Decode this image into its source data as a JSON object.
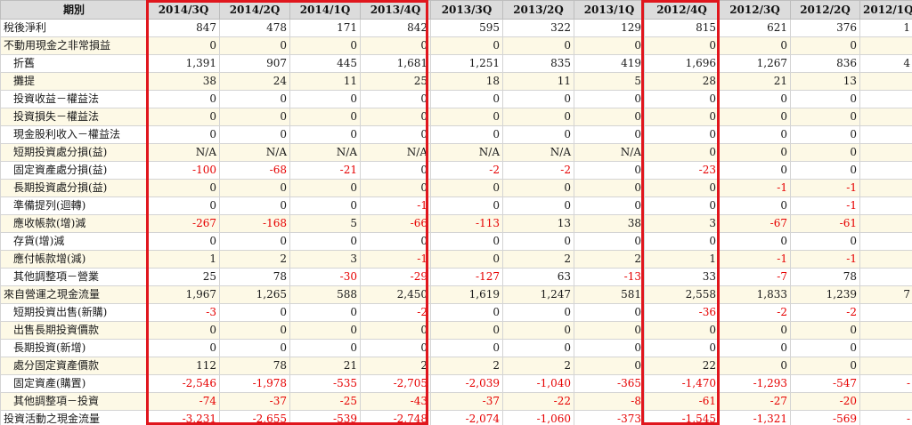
{
  "table": {
    "header_label": "期別",
    "periods": [
      "2014/3Q",
      "2014/2Q",
      "2014/1Q",
      "2013/4Q",
      "2013/3Q",
      "2013/2Q",
      "2013/1Q",
      "2012/4Q",
      "2012/3Q",
      "2012/2Q",
      "2012/1Q"
    ],
    "rows": [
      {
        "label": "稅後淨利",
        "indent": false,
        "yellow": false,
        "values": [
          "847",
          "478",
          "171",
          "842",
          "595",
          "322",
          "129",
          "815",
          "621",
          "376",
          "1"
        ]
      },
      {
        "label": "不動用現金之非常損益",
        "indent": false,
        "yellow": true,
        "values": [
          "0",
          "0",
          "0",
          "0",
          "0",
          "0",
          "0",
          "0",
          "0",
          "0",
          ""
        ]
      },
      {
        "label": "折舊",
        "indent": true,
        "yellow": false,
        "values": [
          "1,391",
          "907",
          "445",
          "1,681",
          "1,251",
          "835",
          "419",
          "1,696",
          "1,267",
          "836",
          "4"
        ]
      },
      {
        "label": "攤提",
        "indent": true,
        "yellow": true,
        "values": [
          "38",
          "24",
          "11",
          "25",
          "18",
          "11",
          "5",
          "28",
          "21",
          "13",
          ""
        ]
      },
      {
        "label": "投資收益－權益法",
        "indent": true,
        "yellow": false,
        "values": [
          "0",
          "0",
          "0",
          "0",
          "0",
          "0",
          "0",
          "0",
          "0",
          "0",
          ""
        ]
      },
      {
        "label": "投資損失－權益法",
        "indent": true,
        "yellow": true,
        "values": [
          "0",
          "0",
          "0",
          "0",
          "0",
          "0",
          "0",
          "0",
          "0",
          "0",
          ""
        ]
      },
      {
        "label": "現金股利收入－權益法",
        "indent": true,
        "yellow": false,
        "values": [
          "0",
          "0",
          "0",
          "0",
          "0",
          "0",
          "0",
          "0",
          "0",
          "0",
          ""
        ]
      },
      {
        "label": "短期投資處分損(益)",
        "indent": true,
        "yellow": true,
        "values": [
          "N/A",
          "N/A",
          "N/A",
          "N/A",
          "N/A",
          "N/A",
          "N/A",
          "0",
          "0",
          "0",
          ""
        ]
      },
      {
        "label": "固定資產處分損(益)",
        "indent": true,
        "yellow": false,
        "values": [
          "-100",
          "-68",
          "-21",
          "0",
          "-2",
          "-2",
          "0",
          "-23",
          "0",
          "0",
          ""
        ]
      },
      {
        "label": "長期投資處分損(益)",
        "indent": true,
        "yellow": true,
        "values": [
          "0",
          "0",
          "0",
          "0",
          "0",
          "0",
          "0",
          "0",
          "-1",
          "-1",
          ""
        ]
      },
      {
        "label": "準備提列(迴轉)",
        "indent": true,
        "yellow": false,
        "values": [
          "0",
          "0",
          "0",
          "-1",
          "0",
          "0",
          "0",
          "0",
          "0",
          "-1",
          ""
        ]
      },
      {
        "label": "應收帳款(增)減",
        "indent": true,
        "yellow": true,
        "values": [
          "-267",
          "-168",
          "5",
          "-66",
          "-113",
          "13",
          "38",
          "3",
          "-67",
          "-61",
          ""
        ]
      },
      {
        "label": "存貨(增)減",
        "indent": true,
        "yellow": false,
        "values": [
          "0",
          "0",
          "0",
          "0",
          "0",
          "0",
          "0",
          "0",
          "0",
          "0",
          ""
        ]
      },
      {
        "label": "應付帳款增(減)",
        "indent": true,
        "yellow": true,
        "values": [
          "1",
          "2",
          "3",
          "-1",
          "0",
          "2",
          "2",
          "1",
          "-1",
          "-1",
          ""
        ]
      },
      {
        "label": "其他調整項－營業",
        "indent": true,
        "yellow": false,
        "values": [
          "25",
          "78",
          "-30",
          "-29",
          "-127",
          "63",
          "-13",
          "33",
          "-7",
          "78",
          ""
        ]
      },
      {
        "label": "來自營運之現金流量",
        "indent": false,
        "yellow": true,
        "values": [
          "1,967",
          "1,265",
          "588",
          "2,450",
          "1,619",
          "1,247",
          "581",
          "2,558",
          "1,833",
          "1,239",
          "7"
        ]
      },
      {
        "label": "短期投資出售(新購)",
        "indent": true,
        "yellow": false,
        "values": [
          "-3",
          "0",
          "0",
          "-2",
          "0",
          "0",
          "0",
          "-36",
          "-2",
          "-2",
          ""
        ]
      },
      {
        "label": "出售長期投資價款",
        "indent": true,
        "yellow": true,
        "values": [
          "0",
          "0",
          "0",
          "0",
          "0",
          "0",
          "0",
          "0",
          "0",
          "0",
          ""
        ]
      },
      {
        "label": "長期投資(新增)",
        "indent": true,
        "yellow": false,
        "values": [
          "0",
          "0",
          "0",
          "0",
          "0",
          "0",
          "0",
          "0",
          "0",
          "0",
          ""
        ]
      },
      {
        "label": "處分固定資產價款",
        "indent": true,
        "yellow": true,
        "values": [
          "112",
          "78",
          "21",
          "2",
          "2",
          "2",
          "0",
          "22",
          "0",
          "0",
          ""
        ]
      },
      {
        "label": "固定資產(購置)",
        "indent": true,
        "yellow": false,
        "values": [
          "-2,546",
          "-1,978",
          "-535",
          "-2,705",
          "-2,039",
          "-1,040",
          "-365",
          "-1,470",
          "-1,293",
          "-547",
          "-"
        ]
      },
      {
        "label": "其他調整項－投資",
        "indent": true,
        "yellow": true,
        "values": [
          "-74",
          "-37",
          "-25",
          "-43",
          "-37",
          "-22",
          "-8",
          "-61",
          "-27",
          "-20",
          ""
        ]
      },
      {
        "label": "投資活動之現金流量",
        "indent": false,
        "yellow": false,
        "values": [
          "-3,231",
          "-2,655",
          "-539",
          "-2,748",
          "-2,074",
          "-1,060",
          "-373",
          "-1,545",
          "-1,321",
          "-569",
          "-"
        ]
      }
    ]
  },
  "colors": {
    "negative": "#e60000",
    "highlight_border": "#e0161d",
    "header_bg": "#dcdcdc",
    "alt_row_bg": "#fdf9e6"
  }
}
